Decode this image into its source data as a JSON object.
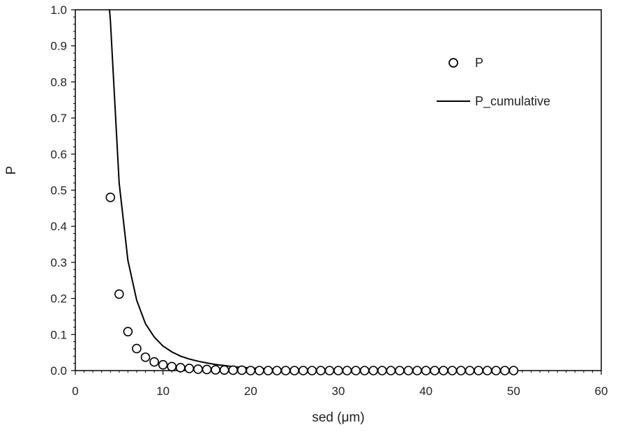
{
  "chart_data": {
    "type": "scatter",
    "title": "",
    "xlabel": "sed (μm)",
    "ylabel": "P",
    "xlim": [
      0,
      60
    ],
    "ylim": [
      0,
      1
    ],
    "x_ticks": [
      0,
      10,
      20,
      30,
      40,
      50,
      60
    ],
    "y_ticks": [
      0.0,
      0.1,
      0.2,
      0.3,
      0.4,
      0.5,
      0.6,
      0.7,
      0.8,
      0.9,
      1.0
    ],
    "x_tick_labels": [
      "0",
      "10",
      "20",
      "30",
      "40",
      "50",
      "60"
    ],
    "y_tick_labels": [
      "0.0",
      "0.1",
      "0.2",
      "0.3",
      "0.4",
      "0.5",
      "0.6",
      "0.7",
      "0.8",
      "0.9",
      "1.0"
    ],
    "grid": false,
    "legend_position": "top-right",
    "series": [
      {
        "name": "P",
        "type": "scatter",
        "marker": "open-circle",
        "color": "#000000",
        "x": [
          4,
          5,
          6,
          7,
          8,
          9,
          10,
          11,
          12,
          13,
          14,
          15,
          16,
          17,
          18,
          19,
          20,
          21,
          22,
          23,
          24,
          25,
          26,
          27,
          28,
          29,
          30,
          31,
          32,
          33,
          34,
          35,
          36,
          37,
          38,
          39,
          40,
          41,
          42,
          43,
          44,
          45,
          46,
          47,
          48,
          49,
          50
        ],
        "y": [
          0.48,
          0.212,
          0.108,
          0.061,
          0.037,
          0.024,
          0.016,
          0.011,
          0.008,
          0.006,
          0.004,
          0.003,
          0.002,
          0.0015,
          0.001,
          0.001,
          0,
          0,
          0,
          0,
          0,
          0,
          0,
          0,
          0,
          0,
          0,
          0,
          0,
          0,
          0,
          0,
          0,
          0,
          0,
          0,
          0,
          0,
          0,
          0,
          0,
          0,
          0,
          0,
          0,
          0,
          0
        ]
      },
      {
        "name": "P_cumulative",
        "type": "line",
        "color": "#000000",
        "x": [
          3.9,
          4,
          5,
          6,
          7,
          8,
          9,
          10,
          11,
          12,
          13,
          14,
          15,
          16,
          17,
          18,
          19,
          20,
          22,
          25,
          30,
          40,
          50
        ],
        "y": [
          1.0,
          0.97,
          0.52,
          0.305,
          0.195,
          0.13,
          0.093,
          0.068,
          0.052,
          0.04,
          0.032,
          0.026,
          0.021,
          0.017,
          0.014,
          0.011,
          0.009,
          0.007,
          0.005,
          0.003,
          0.002,
          0.001,
          0.0005
        ]
      }
    ]
  }
}
